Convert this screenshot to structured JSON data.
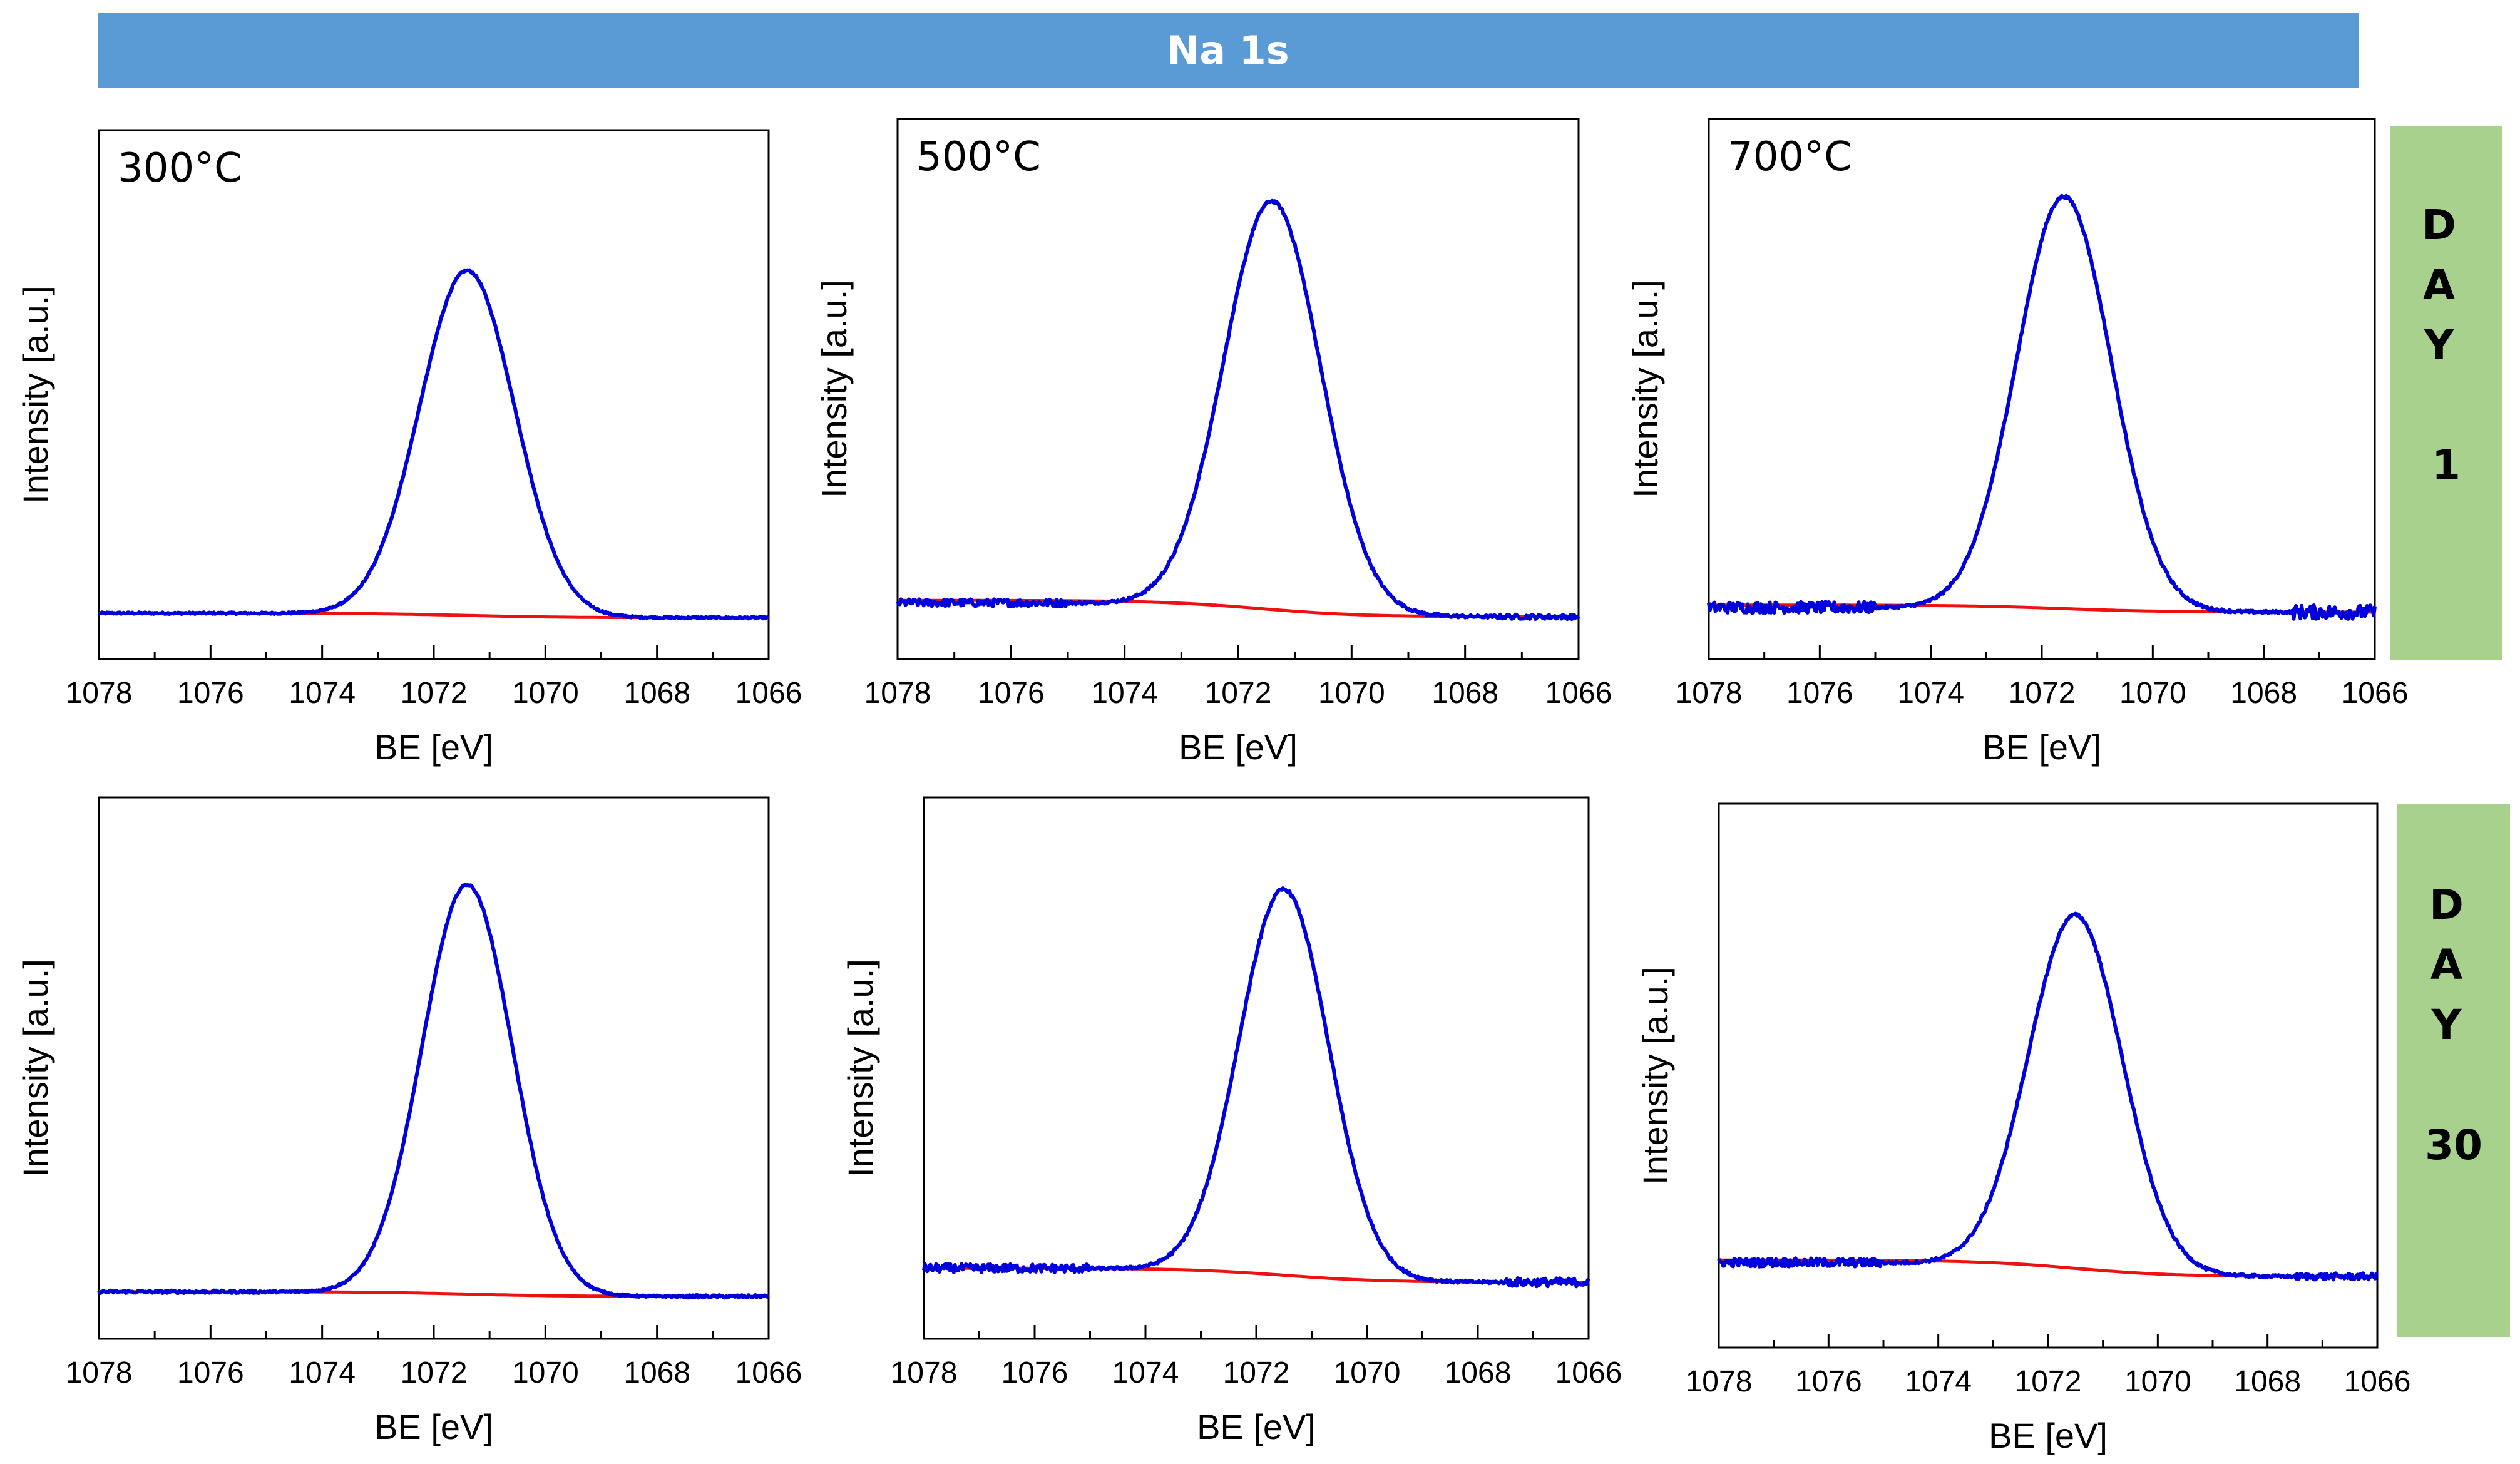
{
  "figure": {
    "title": "Na 1s",
    "row_labels": [
      {
        "lines": [
          "D",
          "A",
          "Y",
          "1"
        ]
      },
      {
        "lines": [
          "D",
          "A",
          "Y",
          "30"
        ]
      }
    ],
    "colors": {
      "banner": "#5b9bd5",
      "side_label": "#a9d18e",
      "spectrum": "#0000dd",
      "background_fit": "#ee1111",
      "frame": "#000000"
    }
  },
  "chart_data": [
    {
      "type": "line",
      "panel_label": "300°C",
      "day": "DAY 1",
      "xlabel": "BE [eV]",
      "ylabel": "Intensity [a.u.]",
      "xlim": [
        1078,
        1066
      ],
      "x_reversed": true,
      "xticks": [
        "1078",
        "1076",
        "1074",
        "1072",
        "1070",
        "1068",
        "1066"
      ],
      "ylim": [
        0,
        1.15
      ],
      "yticks_shown": false,
      "grid": false,
      "series": [
        {
          "role": "spectrum",
          "peak_center": 1071.4,
          "peak_height": 0.75,
          "fwhm": 2.0,
          "baseline_left": 0.1,
          "baseline_right": 0.09,
          "noise": 0.002,
          "noise_left": 0.002,
          "noise_right": 0.002
        },
        {
          "role": "background",
          "value_left": 0.1,
          "value_right": 0.09,
          "step_center": 1071.4
        }
      ]
    },
    {
      "type": "line",
      "panel_label": "500°C",
      "day": "DAY 1",
      "xlabel": "BE [eV]",
      "ylabel": "Intensity [a.u.]",
      "xlim": [
        1078,
        1066
      ],
      "x_reversed": true,
      "xticks": [
        "1078",
        "1076",
        "1074",
        "1072",
        "1070",
        "1068",
        "1066"
      ],
      "ylim": [
        0,
        1.15
      ],
      "yticks_shown": false,
      "grid": false,
      "series": [
        {
          "role": "spectrum",
          "peak_center": 1071.4,
          "peak_height": 0.87,
          "fwhm": 2.0,
          "baseline_left": 0.12,
          "baseline_right": 0.09,
          "noise": 0.003,
          "noise_left": 0.008,
          "noise_right": 0.005
        },
        {
          "role": "background",
          "value_left": 0.125,
          "value_right": 0.09,
          "step_center": 1071.6
        }
      ]
    },
    {
      "type": "line",
      "panel_label": "700°C",
      "day": "DAY 1",
      "xlabel": "BE [eV]",
      "ylabel": "Intensity [a.u.]",
      "xlim": [
        1078,
        1066
      ],
      "x_reversed": true,
      "xticks": [
        "1078",
        "1076",
        "1074",
        "1072",
        "1070",
        "1068",
        "1066"
      ],
      "ylim": [
        0,
        1.15
      ],
      "yticks_shown": false,
      "grid": false,
      "series": [
        {
          "role": "spectrum",
          "peak_center": 1071.6,
          "peak_height": 0.88,
          "fwhm": 2.0,
          "baseline_left": 0.11,
          "baseline_right": 0.1,
          "noise": 0.003,
          "noise_left": 0.012,
          "noise_right": 0.015
        },
        {
          "role": "background",
          "value_left": 0.115,
          "value_right": 0.1,
          "step_center": 1071.6
        }
      ]
    },
    {
      "type": "line",
      "panel_label": "",
      "day": "DAY 30",
      "xlabel": "BE [eV]",
      "ylabel": "Intensity [a.u.]",
      "xlim": [
        1078,
        1066
      ],
      "x_reversed": true,
      "xticks": [
        "1078",
        "1076",
        "1074",
        "1072",
        "1070",
        "1068",
        "1066"
      ],
      "ylim": [
        0,
        1.15
      ],
      "yticks_shown": false,
      "grid": false,
      "series": [
        {
          "role": "spectrum",
          "peak_center": 1071.4,
          "peak_height": 0.87,
          "fwhm": 1.9,
          "baseline_left": 0.1,
          "baseline_right": 0.09,
          "noise": 0.002,
          "noise_left": 0.003,
          "noise_right": 0.003
        },
        {
          "role": "background",
          "value_left": 0.1,
          "value_right": 0.09,
          "step_center": 1071.4
        }
      ]
    },
    {
      "type": "line",
      "panel_label": "",
      "day": "DAY 30",
      "xlabel": "BE [eV]",
      "ylabel": "Intensity [a.u.]",
      "xlim": [
        1078,
        1066
      ],
      "x_reversed": true,
      "xticks": [
        "1078",
        "1076",
        "1074",
        "1072",
        "1070",
        "1068",
        "1066"
      ],
      "ylim": [
        0,
        1.15
      ],
      "yticks_shown": false,
      "grid": false,
      "series": [
        {
          "role": "spectrum",
          "peak_center": 1071.5,
          "peak_height": 0.82,
          "fwhm": 1.9,
          "baseline_left": 0.15,
          "baseline_right": 0.12,
          "noise": 0.003,
          "noise_left": 0.009,
          "noise_right": 0.009
        },
        {
          "role": "background",
          "value_left": 0.15,
          "value_right": 0.12,
          "step_center": 1071.5
        }
      ]
    },
    {
      "type": "line",
      "panel_label": "",
      "day": "DAY 30",
      "xlabel": "BE [eV]",
      "ylabel": "Intensity [a.u.]",
      "xlim": [
        1078,
        1066
      ],
      "x_reversed": true,
      "xticks": [
        "1078",
        "1076",
        "1074",
        "1072",
        "1070",
        "1068",
        "1066"
      ],
      "ylim": [
        0,
        1.15
      ],
      "yticks_shown": false,
      "grid": false,
      "series": [
        {
          "role": "spectrum",
          "peak_center": 1071.5,
          "peak_height": 0.75,
          "fwhm": 2.0,
          "baseline_left": 0.18,
          "baseline_right": 0.15,
          "noise": 0.003,
          "noise_left": 0.009,
          "noise_right": 0.007
        },
        {
          "role": "background",
          "value_left": 0.185,
          "value_right": 0.15,
          "step_center": 1071.5
        }
      ]
    }
  ]
}
